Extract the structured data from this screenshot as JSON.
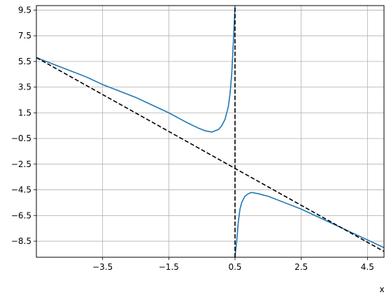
{
  "chart_data": {
    "type": "line",
    "title": "",
    "xlabel": "x",
    "ylabel": "",
    "xlim": [
      -5.5,
      5.0
    ],
    "ylim": [
      -9.75,
      9.85
    ],
    "grid": true,
    "xticks": [
      -3.5,
      -1.5,
      0.5,
      2.5,
      4.5
    ],
    "xtick_labels": [
      "−3.5",
      "−1.5",
      "0.5",
      "2.5",
      "4.5"
    ],
    "yticks": [
      9.5,
      7.5,
      5.5,
      3.5,
      1.5,
      -0.5,
      -2.5,
      -4.5,
      -6.5,
      -8.5
    ],
    "ytick_labels": [
      "9.5",
      "7.5",
      "5.5",
      "3.5",
      "1.5",
      "−0.5",
      "−2.5",
      "−4.5",
      "−6.5",
      "−8.5"
    ],
    "series": [
      {
        "style": "solid",
        "color": "#1f77b4",
        "segments": [
          {
            "x": [
              -5.5,
              -5.0,
              -4.5,
              -4.0,
              -3.5,
              -3.0,
              -2.5,
              -2.0,
              -1.5,
              -1.0,
              -0.6,
              -0.4,
              -0.2,
              0.0,
              0.1,
              0.2,
              0.3,
              0.35,
              0.4,
              0.45,
              0.5
            ],
            "y": [
              5.8,
              5.3,
              4.8,
              4.3,
              3.7,
              3.2,
              2.7,
              2.1,
              1.5,
              0.8,
              0.3,
              0.1,
              0.0,
              0.2,
              0.5,
              1.0,
              2.0,
              3.0,
              4.5,
              7.0,
              9.85
            ]
          },
          {
            "x": [
              0.5,
              0.55,
              0.6,
              0.65,
              0.7,
              0.8,
              0.9,
              1.0,
              1.2,
              1.5,
              2.0,
              2.5,
              3.0,
              3.5,
              4.0,
              4.5,
              5.0
            ],
            "y": [
              -9.75,
              -8.5,
              -7.0,
              -6.0,
              -5.5,
              -5.0,
              -4.8,
              -4.7,
              -4.8,
              -5.0,
              -5.5,
              -6.0,
              -6.6,
              -7.2,
              -7.8,
              -8.4,
              -9.0
            ]
          }
        ]
      },
      {
        "style": "dashed",
        "color": "#000000",
        "segments": [
          {
            "x": [
              -5.5,
              5.0
            ],
            "y": [
              5.8,
              -9.3
            ]
          },
          {
            "x": [
              0.5,
              0.5
            ],
            "y": [
              -9.75,
              9.85
            ]
          }
        ]
      }
    ]
  }
}
